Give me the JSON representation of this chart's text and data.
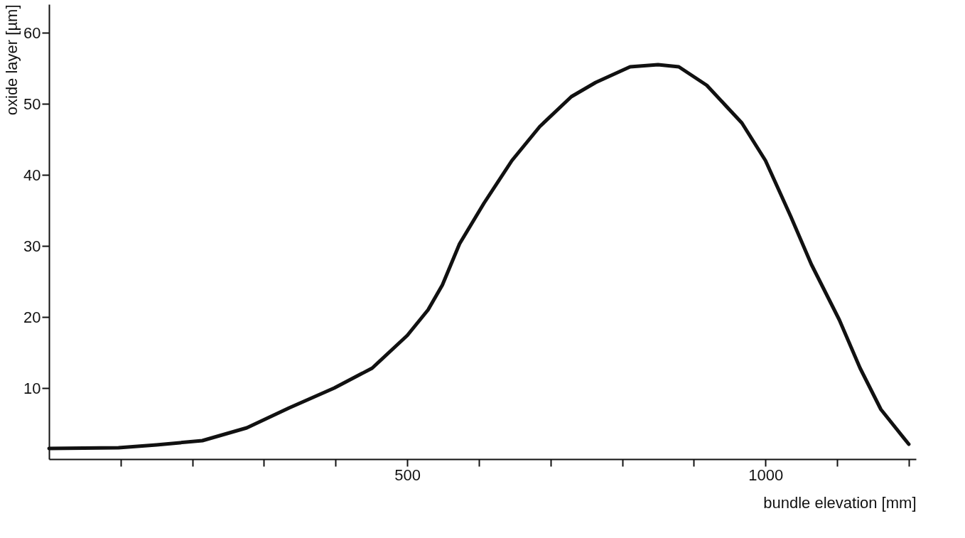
{
  "chart_data": {
    "type": "line",
    "xlabel": "bundle elevation  [mm]",
    "ylabel": "oxide layer  [µm]",
    "x": [
      0,
      97,
      150,
      214,
      276,
      335,
      398,
      451,
      500,
      529,
      549,
      573,
      607,
      646,
      685,
      729,
      763,
      811,
      850,
      879,
      918,
      967,
      1000,
      1035,
      1064,
      1103,
      1132,
      1161,
      1200
    ],
    "series": [
      {
        "color": "#111111",
        "values": [
          1.5,
          1.6,
          2.0,
          2.6,
          4.4,
          7.2,
          10,
          12.8,
          17.4,
          21,
          24.5,
          30.3,
          36,
          42,
          46.8,
          51,
          53,
          55.2,
          55.5,
          55.2,
          52.6,
          47.3,
          42,
          34.2,
          27.4,
          19.6,
          12.8,
          7,
          2.1
        ]
      }
    ],
    "xlim": [
      0,
      1210
    ],
    "ylim": [
      0,
      64
    ],
    "xticks": [
      {
        "value": 100,
        "label": null
      },
      {
        "value": 200,
        "label": null
      },
      {
        "value": 300,
        "label": null
      },
      {
        "value": 400,
        "label": null
      },
      500,
      {
        "value": 600,
        "label": null
      },
      {
        "value": 700,
        "label": null
      },
      {
        "value": 800,
        "label": null
      },
      {
        "value": 900,
        "label": null
      },
      1000,
      {
        "value": 1100,
        "label": null
      },
      {
        "value": 1200,
        "label": null
      }
    ],
    "yticks": [
      10,
      20,
      30,
      40,
      50,
      60
    ],
    "grid": false,
    "marker": "none",
    "line_style": "solid"
  }
}
